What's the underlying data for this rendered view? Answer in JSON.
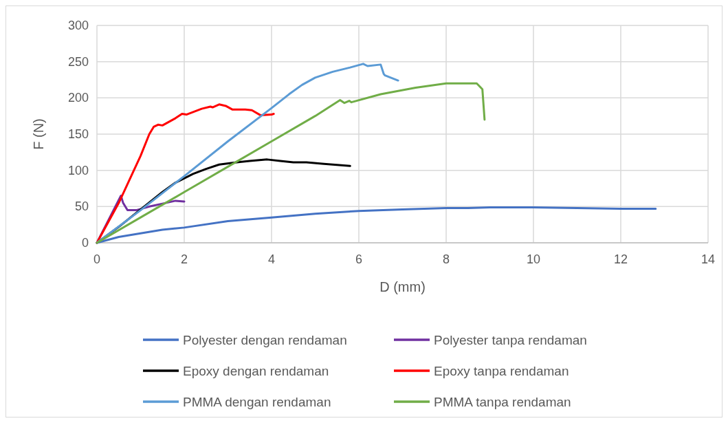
{
  "chart_data": {
    "type": "line",
    "xlabel": "D (mm)",
    "ylabel": "F (N)",
    "xlim": [
      0,
      14
    ],
    "xticks": [
      0,
      2,
      4,
      6,
      8,
      10,
      12,
      14
    ],
    "ylim": [
      0,
      300
    ],
    "yticks": [
      0,
      50,
      100,
      150,
      200,
      250,
      300
    ],
    "grid": true,
    "legend": "bottom",
    "marker": "none",
    "line_style": "solid",
    "series": [
      {
        "name": "Polyester dengan rendaman",
        "color": "#4472c4",
        "x": [
          0,
          0.5,
          1,
          1.5,
          2,
          3,
          4,
          5,
          6,
          7,
          8,
          8.5,
          9,
          10,
          11,
          12,
          12.8
        ],
        "values": [
          0,
          8,
          13,
          18,
          21,
          30,
          35,
          40,
          44,
          46,
          48,
          48,
          49,
          49,
          48,
          47,
          47
        ]
      },
      {
        "name": "Polyester tanpa rendaman",
        "color": "#7030a0",
        "x": [
          0,
          0.55,
          0.6,
          0.7,
          0.9,
          1.2,
          1.5,
          1.8,
          2
        ],
        "values": [
          0,
          65,
          55,
          45,
          45,
          50,
          54,
          58,
          57
        ]
      },
      {
        "name": "Epoxy dengan rendaman",
        "color": "#000000",
        "x": [
          0,
          0.5,
          1.5,
          1.8,
          2.2,
          2.5,
          2.8,
          3.2,
          3.5,
          3.9,
          4.2,
          4.5,
          4.8,
          5.2,
          5.8
        ],
        "values": [
          0,
          22,
          70,
          83,
          95,
          102,
          108,
          111,
          113,
          115,
          113,
          111,
          111,
          109,
          106
        ]
      },
      {
        "name": "Epoxy tanpa rendaman",
        "color": "#ff0000",
        "x": [
          0,
          0.5,
          1,
          1.2,
          1.3,
          1.4,
          1.5,
          1.8,
          1.95,
          2.05,
          2.4,
          2.6,
          2.65,
          2.8,
          2.95,
          3.1,
          3.4,
          3.55,
          3.75,
          4,
          4.05
        ],
        "values": [
          0,
          55,
          120,
          150,
          160,
          163,
          162,
          172,
          178,
          177,
          185,
          188,
          187,
          191,
          189,
          184,
          184,
          183,
          176,
          177,
          178
        ]
      },
      {
        "name": "PMMA dengan rendaman",
        "color": "#5b9bd5",
        "x": [
          0,
          1,
          2,
          3,
          4,
          4.4,
          4.7,
          5,
          5.4,
          5.8,
          6.1,
          6.2,
          6.5,
          6.57,
          6.6,
          6.9
        ],
        "values": [
          0,
          45,
          92,
          140,
          186,
          205,
          218,
          228,
          236,
          242,
          247,
          244,
          246,
          233,
          231,
          224
        ]
      },
      {
        "name": "PMMA tanpa rendaman",
        "color": "#70ad47",
        "x": [
          0,
          1,
          2,
          3,
          4,
          5,
          5.57,
          5.67,
          5.78,
          5.83,
          6.5,
          7.3,
          8,
          8.7,
          8.83,
          8.88
        ],
        "values": [
          0,
          35,
          70,
          105,
          140,
          175,
          197,
          193,
          196,
          194,
          205,
          214,
          220,
          220,
          212,
          170
        ]
      }
    ]
  }
}
